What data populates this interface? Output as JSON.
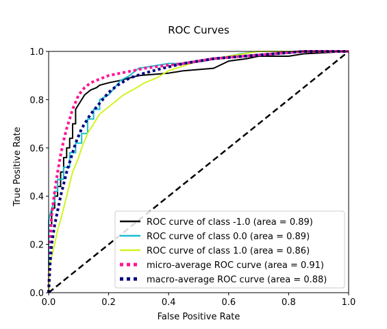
{
  "chart_data": {
    "type": "line",
    "title": "ROC Curves",
    "xlabel": "False Positive Rate",
    "ylabel": "True Positive Rate",
    "xlim": [
      0,
      1
    ],
    "ylim": [
      0,
      1
    ],
    "xticks": [
      "0.0",
      "0.2",
      "0.4",
      "0.6",
      "0.8",
      "1.0"
    ],
    "yticks": [
      "0.0",
      "0.2",
      "0.4",
      "0.6",
      "0.8",
      "1.0"
    ],
    "grid": false,
    "legend_position": "lower-right",
    "series": [
      {
        "name": "ROC curve of class -1.0 (area = 0.89)",
        "color": "#000000",
        "style": "solid",
        "x": [
          0,
          0,
          0.01,
          0.01,
          0.02,
          0.02,
          0.03,
          0.03,
          0.04,
          0.04,
          0.05,
          0.05,
          0.06,
          0.06,
          0.07,
          0.07,
          0.08,
          0.08,
          0.09,
          0.09,
          0.1,
          0.11,
          0.12,
          0.14,
          0.16,
          0.17,
          0.2,
          0.24,
          0.3,
          0.4,
          0.45,
          0.55,
          0.6,
          0.66,
          0.7,
          0.8,
          0.85,
          1.0
        ],
        "y": [
          0,
          0.28,
          0.28,
          0.35,
          0.35,
          0.4,
          0.4,
          0.44,
          0.44,
          0.5,
          0.5,
          0.56,
          0.56,
          0.6,
          0.6,
          0.64,
          0.64,
          0.7,
          0.7,
          0.76,
          0.78,
          0.8,
          0.82,
          0.84,
          0.85,
          0.86,
          0.87,
          0.88,
          0.9,
          0.91,
          0.92,
          0.93,
          0.96,
          0.97,
          0.98,
          0.98,
          0.99,
          1.0
        ]
      },
      {
        "name": "ROC curve of class 0.0 (area = 0.89)",
        "color": "#17becf",
        "style": "solid",
        "x": [
          0,
          0,
          0.01,
          0.02,
          0.02,
          0.03,
          0.03,
          0.05,
          0.05,
          0.07,
          0.07,
          0.09,
          0.09,
          0.11,
          0.11,
          0.13,
          0.13,
          0.15,
          0.15,
          0.17,
          0.17,
          0.2,
          0.22,
          0.24,
          0.27,
          0.3,
          0.35,
          0.4,
          0.45,
          0.52,
          0.6,
          0.64,
          0.7,
          1.0
        ],
        "y": [
          0,
          0.3,
          0.35,
          0.38,
          0.42,
          0.42,
          0.47,
          0.47,
          0.52,
          0.52,
          0.58,
          0.58,
          0.62,
          0.62,
          0.66,
          0.66,
          0.72,
          0.72,
          0.76,
          0.76,
          0.8,
          0.82,
          0.85,
          0.88,
          0.9,
          0.93,
          0.94,
          0.95,
          0.95,
          0.96,
          0.98,
          0.99,
          1.0,
          1.0
        ]
      },
      {
        "name": "ROC curve of class 1.0 (area = 0.86)",
        "color": "#d4f21f",
        "style": "solid",
        "x": [
          0,
          0,
          0.01,
          0.02,
          0.03,
          0.04,
          0.05,
          0.06,
          0.07,
          0.08,
          0.09,
          0.1,
          0.11,
          0.12,
          0.13,
          0.15,
          0.17,
          0.19,
          0.22,
          0.25,
          0.28,
          0.32,
          0.36,
          0.4,
          0.45,
          0.5,
          0.55,
          0.6,
          0.65,
          0.7,
          1.0
        ],
        "y": [
          0,
          0.1,
          0.15,
          0.2,
          0.26,
          0.3,
          0.35,
          0.4,
          0.45,
          0.5,
          0.53,
          0.56,
          0.6,
          0.63,
          0.66,
          0.7,
          0.74,
          0.76,
          0.79,
          0.82,
          0.84,
          0.87,
          0.89,
          0.92,
          0.94,
          0.96,
          0.97,
          0.98,
          0.99,
          1.0,
          1.0
        ]
      },
      {
        "name": "micro-average ROC curve (area = 0.91)",
        "color": "#ff1493",
        "style": "dotted",
        "x": [
          0,
          0.005,
          0.01,
          0.02,
          0.03,
          0.04,
          0.05,
          0.06,
          0.07,
          0.08,
          0.09,
          0.1,
          0.12,
          0.14,
          0.16,
          0.18,
          0.2,
          0.24,
          0.28,
          0.32,
          0.38,
          0.45,
          0.55,
          0.65,
          0.75,
          0.85,
          0.95,
          1.0
        ],
        "y": [
          0,
          0.22,
          0.32,
          0.42,
          0.5,
          0.57,
          0.63,
          0.68,
          0.72,
          0.76,
          0.79,
          0.82,
          0.85,
          0.87,
          0.88,
          0.89,
          0.9,
          0.91,
          0.92,
          0.93,
          0.94,
          0.95,
          0.97,
          0.98,
          0.99,
          1.0,
          1.0,
          1.0
        ]
      },
      {
        "name": "macro-average ROC curve (area = 0.88)",
        "color": "#00007f",
        "style": "dotted",
        "x": [
          0,
          0.005,
          0.01,
          0.02,
          0.03,
          0.04,
          0.05,
          0.06,
          0.07,
          0.08,
          0.09,
          0.1,
          0.11,
          0.12,
          0.14,
          0.16,
          0.18,
          0.2,
          0.23,
          0.27,
          0.32,
          0.38,
          0.45,
          0.55,
          0.65,
          0.75,
          0.85,
          1.0
        ],
        "y": [
          0,
          0.12,
          0.2,
          0.28,
          0.34,
          0.4,
          0.45,
          0.5,
          0.54,
          0.58,
          0.62,
          0.65,
          0.68,
          0.7,
          0.74,
          0.77,
          0.8,
          0.83,
          0.86,
          0.89,
          0.91,
          0.93,
          0.95,
          0.97,
          0.98,
          0.99,
          1.0,
          1.0
        ]
      }
    ],
    "reference_line": {
      "x": [
        0,
        1
      ],
      "y": [
        0,
        1
      ],
      "color": "#000000",
      "style": "dashed"
    }
  }
}
